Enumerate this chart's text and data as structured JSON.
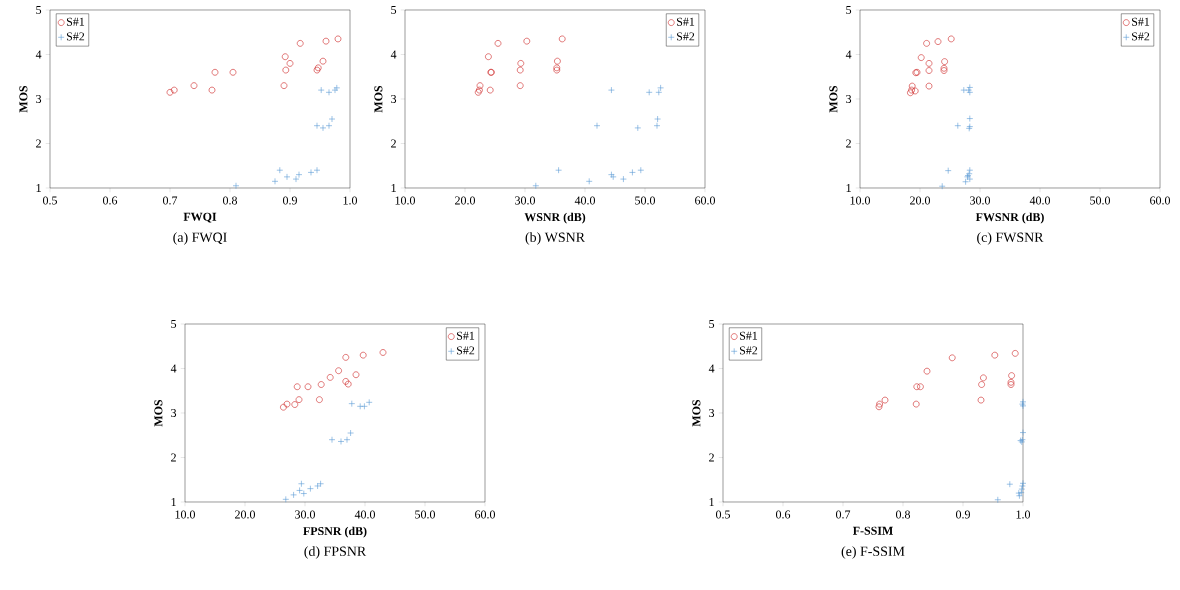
{
  "chart_data": [
    {
      "type": "scatter",
      "title": "(a) FWQI",
      "xlabel": "FWQI",
      "ylabel": "MOS",
      "xlim": [
        0.5,
        1.0
      ],
      "ylim": [
        1,
        5
      ],
      "xticks": [
        0.5,
        0.6,
        0.7,
        0.8,
        0.9,
        {
          "value": 1.0,
          "label": "1.0"
        }
      ],
      "yticks": [
        1,
        2,
        3,
        4,
        5
      ],
      "legend": "top left",
      "series": [
        {
          "name": "S#1",
          "color": "#cc2222",
          "marker": "circle",
          "x": [
            0.7,
            0.707,
            0.74,
            0.775,
            0.77,
            0.805,
            0.89,
            0.892,
            0.893,
            0.9,
            0.917,
            0.945,
            0.947,
            0.955,
            0.96,
            0.98
          ],
          "values": [
            3.15,
            3.2,
            3.3,
            3.6,
            3.2,
            3.6,
            3.3,
            3.95,
            3.65,
            3.8,
            4.25,
            3.65,
            3.7,
            3.85,
            4.3,
            4.35
          ]
        },
        {
          "name": "S#2",
          "color": "#5b9bd5",
          "marker": "cross",
          "x": [
            0.81,
            0.875,
            0.883,
            0.895,
            0.91,
            0.915,
            0.935,
            0.945,
            0.945,
            0.955,
            0.965,
            0.97,
            0.952,
            0.965,
            0.975,
            0.978
          ],
          "values": [
            1.05,
            1.15,
            1.4,
            1.25,
            1.2,
            1.3,
            1.35,
            1.4,
            2.4,
            2.35,
            2.4,
            2.55,
            3.2,
            3.15,
            3.2,
            3.25
          ]
        }
      ]
    },
    {
      "type": "scatter",
      "title": "(b) WSNR",
      "xlabel": "WSNR (dB)",
      "ylabel": "MOS",
      "xlim": [
        10,
        60
      ],
      "ylim": [
        1,
        5
      ],
      "xticks": [
        {
          "value": 10,
          "label": "10.0"
        },
        {
          "value": 20,
          "label": "20.0"
        },
        {
          "value": 30,
          "label": "30.0"
        },
        {
          "value": 40,
          "label": "40.0"
        },
        {
          "value": 50,
          "label": "50.0"
        },
        {
          "value": 60,
          "label": "60.0"
        }
      ],
      "yticks": [
        1,
        2,
        3,
        4,
        5
      ],
      "legend": "top right",
      "series": [
        {
          "name": "S#1",
          "color": "#cc2222",
          "marker": "circle",
          "x": [
            22.2,
            22.4,
            22.5,
            24.3,
            24.2,
            24.4,
            29.2,
            23.9,
            29.2,
            29.3,
            25.5,
            35.3,
            35.3,
            35.4,
            30.3,
            36.2
          ],
          "values": [
            3.15,
            3.2,
            3.3,
            3.6,
            3.2,
            3.6,
            3.3,
            3.95,
            3.65,
            3.8,
            4.25,
            3.65,
            3.7,
            3.85,
            4.3,
            4.35
          ]
        },
        {
          "name": "S#2",
          "color": "#5b9bd5",
          "marker": "cross",
          "x": [
            31.8,
            40.7,
            35.6,
            44.4,
            42.0,
            44.4,
            44.7,
            46.4,
            47.9,
            49.3,
            48.8,
            50.7,
            52.0,
            52.1,
            52.3,
            52.6
          ],
          "values": [
            1.05,
            1.15,
            1.4,
            3.2,
            2.4,
            1.3,
            1.25,
            1.2,
            1.35,
            1.4,
            2.35,
            3.15,
            2.4,
            2.55,
            3.15,
            3.25
          ]
        }
      ]
    },
    {
      "type": "scatter",
      "title": "(c) FWSNR",
      "xlabel": "FWSNR (dB)",
      "ylabel": "MOS",
      "xlim": [
        10,
        60
      ],
      "ylim": [
        1,
        5
      ],
      "xticks": [
        {
          "value": 10,
          "label": "10.0"
        },
        {
          "value": 20,
          "label": "20.0"
        },
        {
          "value": 30,
          "label": "30.0"
        },
        {
          "value": 40,
          "label": "40.0"
        },
        {
          "value": 50,
          "label": "50.0"
        },
        {
          "value": 60,
          "label": "60.0"
        }
      ],
      "yticks": [
        1,
        2,
        3,
        4,
        5
      ],
      "legend": "top right",
      "series": [
        {
          "name": "S#1",
          "color": "#cc2222",
          "marker": "circle",
          "x": [
            18.4,
            18.6,
            18.7,
            19.2,
            19.3,
            19.5,
            20.2,
            21.1,
            21.5,
            21.5,
            21.5,
            23.0,
            24.1,
            24.0,
            24.0,
            25.2
          ],
          "values": [
            3.14,
            3.2,
            3.29,
            3.18,
            3.59,
            3.6,
            3.93,
            4.25,
            3.8,
            3.64,
            3.29,
            4.29,
            3.84,
            3.69,
            3.64,
            4.35
          ]
        },
        {
          "name": "S#2",
          "color": "#5b9bd5",
          "marker": "cross",
          "x": [
            23.7,
            24.7,
            26.3,
            27.3,
            27.6,
            27.9,
            28.2,
            28.3,
            28.3,
            28.3,
            28.2,
            28.3,
            28.3,
            28.3,
            28.1,
            28.0
          ],
          "values": [
            1.04,
            1.39,
            2.4,
            3.2,
            1.14,
            1.25,
            1.32,
            1.4,
            1.2,
            2.38,
            2.34,
            2.56,
            3.26,
            3.15,
            3.2,
            1.28
          ]
        }
      ]
    },
    {
      "type": "scatter",
      "title": "(d) FPSNR",
      "xlabel": "FPSNR (dB)",
      "ylabel": "MOS",
      "xlim": [
        10,
        60
      ],
      "ylim": [
        1,
        5
      ],
      "xticks": [
        {
          "value": 10,
          "label": "10.0"
        },
        {
          "value": 20,
          "label": "20.0"
        },
        {
          "value": 30,
          "label": "30.0"
        },
        {
          "value": 40,
          "label": "40.0"
        },
        {
          "value": 50,
          "label": "50.0"
        },
        {
          "value": 60,
          "label": "60.0"
        }
      ],
      "yticks": [
        1,
        2,
        3,
        4,
        5
      ],
      "legend": "top right",
      "series": [
        {
          "name": "S#1",
          "color": "#cc2222",
          "marker": "circle",
          "x": [
            26.4,
            27.0,
            28.3,
            29.0,
            28.7,
            30.5,
            32.4,
            32.7,
            34.2,
            35.6,
            36.8,
            36.8,
            37.2,
            38.5,
            39.7,
            43.0
          ],
          "values": [
            3.13,
            3.2,
            3.19,
            3.3,
            3.59,
            3.59,
            3.3,
            3.64,
            3.8,
            3.95,
            4.25,
            3.71,
            3.65,
            3.86,
            4.3,
            4.36
          ]
        },
        {
          "name": "S#2",
          "color": "#5b9bd5",
          "marker": "cross",
          "x": [
            26.8,
            28.1,
            29.4,
            29.1,
            29.8,
            30.9,
            32.1,
            32.6,
            34.5,
            36.0,
            37.0,
            37.6,
            37.8,
            39.2,
            39.9,
            40.7
          ],
          "values": [
            1.06,
            1.16,
            1.41,
            1.26,
            1.19,
            1.3,
            1.36,
            1.41,
            2.4,
            2.36,
            2.4,
            2.55,
            3.21,
            3.15,
            3.15,
            3.24
          ]
        }
      ]
    },
    {
      "type": "scatter",
      "title": "(e) F-SSIM",
      "xlabel": "F-SSIM",
      "ylabel": "MOS",
      "xlim": [
        0.5,
        1.0
      ],
      "ylim": [
        1,
        5
      ],
      "xticks": [
        0.5,
        0.6,
        0.7,
        0.8,
        0.9,
        {
          "value": 1.0,
          "label": "1.0"
        }
      ],
      "yticks": [
        1,
        2,
        3,
        4,
        5
      ],
      "legend": "top left",
      "series": [
        {
          "name": "S#1",
          "color": "#cc2222",
          "marker": "circle",
          "x": [
            0.76,
            0.761,
            0.77,
            0.822,
            0.823,
            0.829,
            0.84,
            0.882,
            0.93,
            0.931,
            0.934,
            0.953,
            0.98,
            0.98,
            0.981,
            0.987
          ],
          "values": [
            3.14,
            3.2,
            3.29,
            3.2,
            3.59,
            3.59,
            3.94,
            4.24,
            3.29,
            3.64,
            3.79,
            4.3,
            3.69,
            3.64,
            3.84,
            4.34
          ]
        },
        {
          "name": "S#2",
          "color": "#5b9bd5",
          "marker": "cross",
          "x": [
            0.958,
            0.978,
            0.994,
            0.996,
            0.997,
            0.998,
            0.999,
            1.0,
            0.999,
            1.0,
            0.999,
            1.0,
            1.0,
            0.998,
            0.993
          ],
          "values": [
            1.05,
            1.4,
            1.14,
            2.38,
            1.21,
            1.29,
            1.36,
            1.42,
            2.4,
            2.56,
            3.2,
            3.25,
            3.16,
            2.35,
            1.2
          ]
        }
      ]
    }
  ]
}
